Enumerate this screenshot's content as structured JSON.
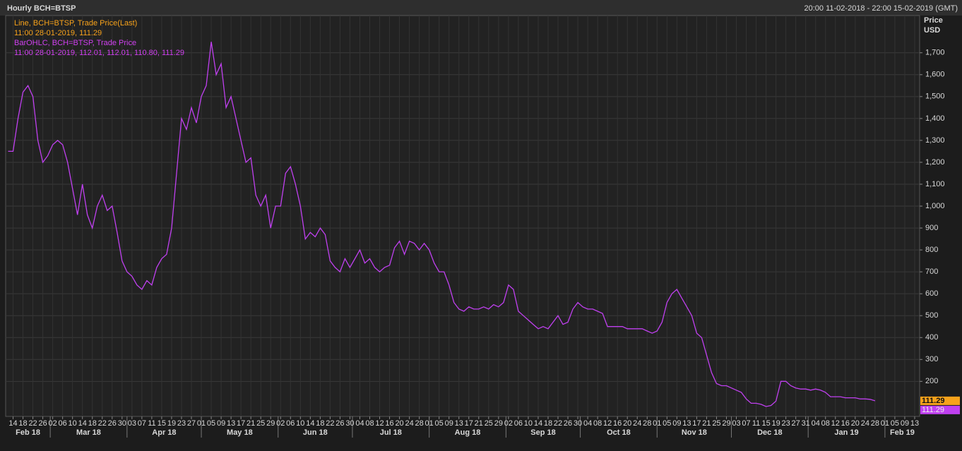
{
  "chart_data": {
    "type": "line",
    "title": "Hourly BCH=BTSP",
    "range_text": "20:00 11-02-2018 - 22:00 15-02-2019 (GMT)",
    "y_label": [
      "Price",
      "USD"
    ],
    "legend": [
      {
        "text": "Line, BCH=BTSP, Trade Price(Last)",
        "detail": "11:00 28-01-2019, 111.29",
        "color": "#f7a21b"
      },
      {
        "text": "BarOHLC, BCH=BTSP, Trade Price",
        "detail": "11:00 28-01-2019, 112.01, 112.01, 110.80, 111.29",
        "color": "#d040f0"
      }
    ],
    "last_tags": [
      {
        "value": 111.29,
        "label": "111.29",
        "color": "#f7a21b"
      },
      {
        "value": 111.29,
        "label": "111.29",
        "color": "#c040f0"
      }
    ],
    "xlim": [
      "2018-02-11",
      "2019-02-15"
    ],
    "ylim": [
      40,
      1870
    ],
    "grid": true,
    "yticks": [
      200,
      300,
      400,
      500,
      600,
      700,
      800,
      900,
      {
        "value": 1000,
        "label": "1,000"
      },
      {
        "value": 1100,
        "label": "1,100"
      },
      {
        "value": 1200,
        "label": "1,200"
      },
      {
        "value": 1300,
        "label": "1,300"
      },
      {
        "value": 1400,
        "label": "1,400"
      },
      {
        "value": 1500,
        "label": "1,500"
      },
      {
        "value": 1600,
        "label": "1,600"
      },
      {
        "value": 1700,
        "label": "1,700"
      }
    ],
    "xticks": [
      {
        "value": "2018-02-14",
        "label": "14"
      },
      {
        "value": "2018-02-18",
        "label": "18"
      },
      {
        "value": "2018-02-22",
        "label": "22"
      },
      {
        "value": "2018-02-26",
        "label": "26"
      },
      {
        "value": "2018-03-02",
        "label": "02"
      },
      {
        "value": "2018-03-06",
        "label": "06"
      },
      {
        "value": "2018-03-10",
        "label": "10"
      },
      {
        "value": "2018-03-14",
        "label": "14"
      },
      {
        "value": "2018-03-18",
        "label": "18"
      },
      {
        "value": "2018-03-22",
        "label": "22"
      },
      {
        "value": "2018-03-26",
        "label": "26"
      },
      {
        "value": "2018-03-30",
        "label": "30"
      },
      {
        "value": "2018-04-03",
        "label": "03"
      },
      {
        "value": "2018-04-07",
        "label": "07"
      },
      {
        "value": "2018-04-11",
        "label": "11"
      },
      {
        "value": "2018-04-15",
        "label": "15"
      },
      {
        "value": "2018-04-19",
        "label": "19"
      },
      {
        "value": "2018-04-23",
        "label": "23"
      },
      {
        "value": "2018-04-27",
        "label": "27"
      },
      {
        "value": "2018-05-01",
        "label": "01"
      },
      {
        "value": "2018-05-05",
        "label": "05"
      },
      {
        "value": "2018-05-09",
        "label": "09"
      },
      {
        "value": "2018-05-13",
        "label": "13"
      },
      {
        "value": "2018-05-17",
        "label": "17"
      },
      {
        "value": "2018-05-21",
        "label": "21"
      },
      {
        "value": "2018-05-25",
        "label": "25"
      },
      {
        "value": "2018-05-29",
        "label": "29"
      },
      {
        "value": "2018-06-02",
        "label": "02"
      },
      {
        "value": "2018-06-06",
        "label": "06"
      },
      {
        "value": "2018-06-10",
        "label": "10"
      },
      {
        "value": "2018-06-14",
        "label": "14"
      },
      {
        "value": "2018-06-18",
        "label": "18"
      },
      {
        "value": "2018-06-22",
        "label": "22"
      },
      {
        "value": "2018-06-26",
        "label": "26"
      },
      {
        "value": "2018-06-30",
        "label": "30"
      },
      {
        "value": "2018-07-04",
        "label": "04"
      },
      {
        "value": "2018-07-08",
        "label": "08"
      },
      {
        "value": "2018-07-12",
        "label": "12"
      },
      {
        "value": "2018-07-16",
        "label": "16"
      },
      {
        "value": "2018-07-20",
        "label": "20"
      },
      {
        "value": "2018-07-24",
        "label": "24"
      },
      {
        "value": "2018-07-28",
        "label": "28"
      },
      {
        "value": "2018-08-01",
        "label": "01"
      },
      {
        "value": "2018-08-05",
        "label": "05"
      },
      {
        "value": "2018-08-09",
        "label": "09"
      },
      {
        "value": "2018-08-13",
        "label": "13"
      },
      {
        "value": "2018-08-17",
        "label": "17"
      },
      {
        "value": "2018-08-21",
        "label": "21"
      },
      {
        "value": "2018-08-25",
        "label": "25"
      },
      {
        "value": "2018-08-29",
        "label": "29"
      },
      {
        "value": "2018-09-02",
        "label": "02"
      },
      {
        "value": "2018-09-06",
        "label": "06"
      },
      {
        "value": "2018-09-10",
        "label": "10"
      },
      {
        "value": "2018-09-14",
        "label": "14"
      },
      {
        "value": "2018-09-18",
        "label": "18"
      },
      {
        "value": "2018-09-22",
        "label": "22"
      },
      {
        "value": "2018-09-26",
        "label": "26"
      },
      {
        "value": "2018-09-30",
        "label": "30"
      },
      {
        "value": "2018-10-04",
        "label": "04"
      },
      {
        "value": "2018-10-08",
        "label": "08"
      },
      {
        "value": "2018-10-12",
        "label": "12"
      },
      {
        "value": "2018-10-16",
        "label": "16"
      },
      {
        "value": "2018-10-20",
        "label": "20"
      },
      {
        "value": "2018-10-24",
        "label": "24"
      },
      {
        "value": "2018-10-28",
        "label": "28"
      },
      {
        "value": "2018-11-01",
        "label": "01"
      },
      {
        "value": "2018-11-05",
        "label": "05"
      },
      {
        "value": "2018-11-09",
        "label": "09"
      },
      {
        "value": "2018-11-13",
        "label": "13"
      },
      {
        "value": "2018-11-17",
        "label": "17"
      },
      {
        "value": "2018-11-21",
        "label": "21"
      },
      {
        "value": "2018-11-25",
        "label": "25"
      },
      {
        "value": "2018-11-29",
        "label": "29"
      },
      {
        "value": "2018-12-03",
        "label": "03"
      },
      {
        "value": "2018-12-07",
        "label": "07"
      },
      {
        "value": "2018-12-11",
        "label": "11"
      },
      {
        "value": "2018-12-15",
        "label": "15"
      },
      {
        "value": "2018-12-19",
        "label": "19"
      },
      {
        "value": "2018-12-23",
        "label": "23"
      },
      {
        "value": "2018-12-27",
        "label": "27"
      },
      {
        "value": "2018-12-31",
        "label": "31"
      },
      {
        "value": "2019-01-04",
        "label": "04"
      },
      {
        "value": "2019-01-08",
        "label": "08"
      },
      {
        "value": "2019-01-12",
        "label": "12"
      },
      {
        "value": "2019-01-16",
        "label": "16"
      },
      {
        "value": "2019-01-20",
        "label": "20"
      },
      {
        "value": "2019-01-24",
        "label": "24"
      },
      {
        "value": "2019-01-28",
        "label": "28"
      },
      {
        "value": "2019-02-01",
        "label": "01"
      },
      {
        "value": "2019-02-05",
        "label": "05"
      },
      {
        "value": "2019-02-09",
        "label": "09"
      },
      {
        "value": "2019-02-13",
        "label": "13"
      }
    ],
    "month_labels": [
      {
        "value": "2018-02",
        "label": "Feb 18"
      },
      {
        "value": "2018-03",
        "label": "Mar 18"
      },
      {
        "value": "2018-04",
        "label": "Apr 18"
      },
      {
        "value": "2018-05",
        "label": "May 18"
      },
      {
        "value": "2018-06",
        "label": "Jun 18"
      },
      {
        "value": "2018-07",
        "label": "Jul 18"
      },
      {
        "value": "2018-08",
        "label": "Aug 18"
      },
      {
        "value": "2018-09",
        "label": "Sep 18"
      },
      {
        "value": "2018-10",
        "label": "Oct 18"
      },
      {
        "value": "2018-11",
        "label": "Nov 18"
      },
      {
        "value": "2018-12",
        "label": "Dec 18"
      },
      {
        "value": "2019-01",
        "label": "Jan 19"
      },
      {
        "value": "2019-02",
        "label": "Feb 19"
      }
    ],
    "x": [
      "2018-02-12",
      "2018-02-14",
      "2018-02-16",
      "2018-02-18",
      "2018-02-20",
      "2018-02-22",
      "2018-02-24",
      "2018-02-26",
      "2018-02-28",
      "2018-03-02",
      "2018-03-04",
      "2018-03-06",
      "2018-03-08",
      "2018-03-10",
      "2018-03-12",
      "2018-03-14",
      "2018-03-16",
      "2018-03-18",
      "2018-03-20",
      "2018-03-22",
      "2018-03-24",
      "2018-03-26",
      "2018-03-28",
      "2018-03-30",
      "2018-04-01",
      "2018-04-03",
      "2018-04-05",
      "2018-04-07",
      "2018-04-09",
      "2018-04-11",
      "2018-04-13",
      "2018-04-15",
      "2018-04-17",
      "2018-04-19",
      "2018-04-21",
      "2018-04-23",
      "2018-04-25",
      "2018-04-27",
      "2018-04-29",
      "2018-05-01",
      "2018-05-03",
      "2018-05-05",
      "2018-05-07",
      "2018-05-09",
      "2018-05-11",
      "2018-05-13",
      "2018-05-15",
      "2018-05-17",
      "2018-05-19",
      "2018-05-21",
      "2018-05-23",
      "2018-05-25",
      "2018-05-27",
      "2018-05-29",
      "2018-05-31",
      "2018-06-02",
      "2018-06-04",
      "2018-06-06",
      "2018-06-08",
      "2018-06-10",
      "2018-06-12",
      "2018-06-14",
      "2018-06-16",
      "2018-06-18",
      "2018-06-20",
      "2018-06-22",
      "2018-06-24",
      "2018-06-26",
      "2018-06-28",
      "2018-06-30",
      "2018-07-02",
      "2018-07-04",
      "2018-07-06",
      "2018-07-08",
      "2018-07-10",
      "2018-07-12",
      "2018-07-14",
      "2018-07-16",
      "2018-07-18",
      "2018-07-20",
      "2018-07-22",
      "2018-07-24",
      "2018-07-26",
      "2018-07-28",
      "2018-07-30",
      "2018-08-01",
      "2018-08-03",
      "2018-08-05",
      "2018-08-07",
      "2018-08-09",
      "2018-08-11",
      "2018-08-13",
      "2018-08-15",
      "2018-08-17",
      "2018-08-19",
      "2018-08-21",
      "2018-08-23",
      "2018-08-25",
      "2018-08-27",
      "2018-08-29",
      "2018-08-31",
      "2018-09-02",
      "2018-09-04",
      "2018-09-06",
      "2018-09-08",
      "2018-09-10",
      "2018-09-12",
      "2018-09-14",
      "2018-09-16",
      "2018-09-18",
      "2018-09-20",
      "2018-09-22",
      "2018-09-24",
      "2018-09-26",
      "2018-09-28",
      "2018-09-30",
      "2018-10-02",
      "2018-10-04",
      "2018-10-06",
      "2018-10-08",
      "2018-10-10",
      "2018-10-12",
      "2018-10-14",
      "2018-10-16",
      "2018-10-18",
      "2018-10-20",
      "2018-10-22",
      "2018-10-24",
      "2018-10-26",
      "2018-10-28",
      "2018-10-30",
      "2018-11-01",
      "2018-11-03",
      "2018-11-05",
      "2018-11-07",
      "2018-11-09",
      "2018-11-11",
      "2018-11-13",
      "2018-11-15",
      "2018-11-17",
      "2018-11-19",
      "2018-11-21",
      "2018-11-23",
      "2018-11-25",
      "2018-11-27",
      "2018-11-29",
      "2018-12-01",
      "2018-12-03",
      "2018-12-05",
      "2018-12-07",
      "2018-12-09",
      "2018-12-11",
      "2018-12-13",
      "2018-12-15",
      "2018-12-17",
      "2018-12-19",
      "2018-12-21",
      "2018-12-23",
      "2018-12-25",
      "2018-12-27",
      "2018-12-29",
      "2018-12-31",
      "2019-01-02",
      "2019-01-04",
      "2019-01-06",
      "2019-01-08",
      "2019-01-10",
      "2019-01-12",
      "2019-01-14",
      "2019-01-16",
      "2019-01-18",
      "2019-01-20",
      "2019-01-22",
      "2019-01-24",
      "2019-01-26",
      "2019-01-28"
    ],
    "series": [
      {
        "name": "BCH=BTSP",
        "color": "#c040f0",
        "values": [
          1250,
          1250,
          1400,
          1520,
          1550,
          1500,
          1300,
          1200,
          1230,
          1280,
          1300,
          1280,
          1200,
          1080,
          960,
          1100,
          960,
          900,
          1000,
          1050,
          980,
          1000,
          880,
          750,
          700,
          680,
          640,
          620,
          660,
          640,
          720,
          760,
          780,
          900,
          1150,
          1400,
          1350,
          1450,
          1380,
          1500,
          1550,
          1750,
          1600,
          1650,
          1450,
          1500,
          1400,
          1300,
          1200,
          1220,
          1050,
          1000,
          1050,
          900,
          1000,
          1000,
          1150,
          1180,
          1100,
          1000,
          850,
          880,
          860,
          900,
          870,
          750,
          720,
          700,
          760,
          720,
          760,
          800,
          740,
          760,
          720,
          700,
          720,
          730,
          810,
          840,
          780,
          840,
          830,
          800,
          830,
          800,
          740,
          700,
          700,
          640,
          560,
          530,
          520,
          540,
          530,
          530,
          540,
          530,
          550,
          540,
          560,
          640,
          620,
          520,
          500,
          480,
          460,
          440,
          450,
          440,
          470,
          500,
          460,
          470,
          530,
          560,
          540,
          530,
          530,
          520,
          510,
          450,
          450,
          450,
          450,
          440,
          440,
          440,
          440,
          430,
          420,
          430,
          470,
          560,
          600,
          620,
          580,
          540,
          500,
          420,
          400,
          320,
          240,
          190,
          180,
          180,
          170,
          160,
          150,
          120,
          100,
          100,
          95,
          85,
          90,
          110,
          200,
          200,
          180,
          170,
          165,
          165,
          160,
          165,
          160,
          150,
          130,
          130,
          130,
          125,
          125,
          125,
          120,
          120,
          118,
          111.29
        ]
      }
    ]
  }
}
